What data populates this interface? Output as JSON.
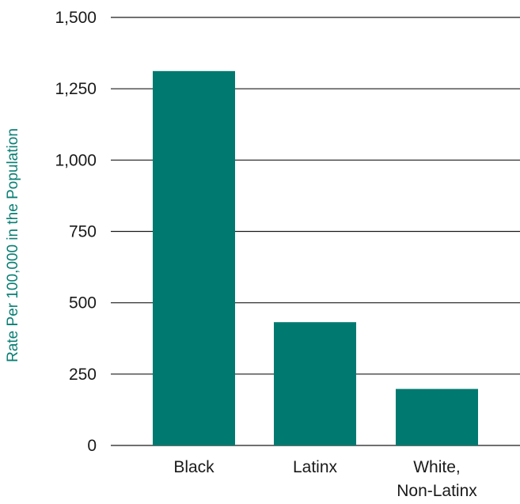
{
  "chart_data": {
    "type": "bar",
    "categories": [
      "Black",
      "Latinx",
      "White, Non-Latinx"
    ],
    "category_lines": [
      [
        "Black"
      ],
      [
        "Latinx"
      ],
      [
        "White,",
        "Non-Latinx"
      ]
    ],
    "values": [
      1312,
      432,
      198
    ],
    "ylabel": "Rate Per 100,000 in the Population",
    "xlabel": "",
    "title": "",
    "ylim": [
      0,
      1500
    ],
    "yticks": [
      0,
      250,
      500,
      750,
      1000,
      1250,
      1500
    ],
    "ytick_labels": [
      "0",
      "250",
      "500",
      "750",
      "1,000",
      "1,250",
      "1,500"
    ],
    "grid": true,
    "legend": "none",
    "colors": {
      "bar": "#007A70",
      "axis_title": "#0A7F74",
      "grid": "#1A1A1A",
      "text": "#1A1A1A"
    }
  }
}
